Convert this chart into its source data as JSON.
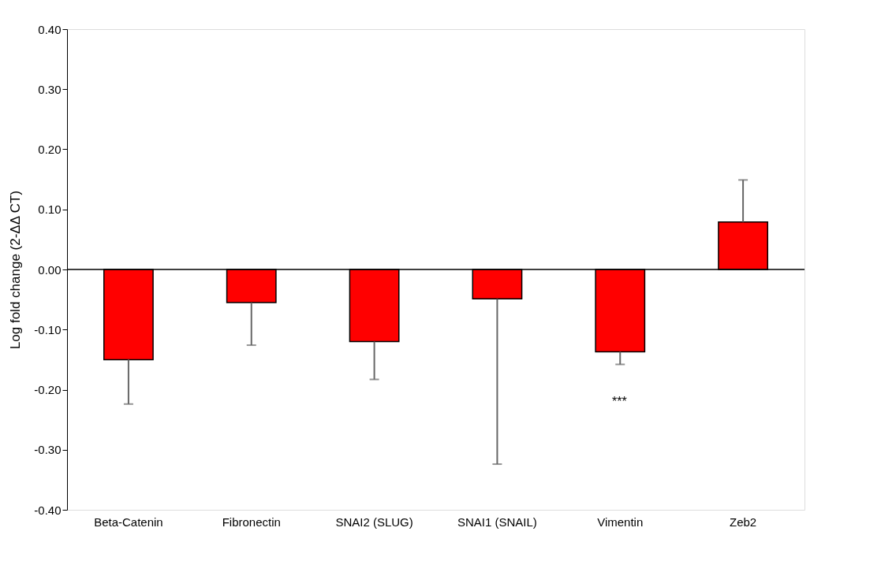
{
  "chart_data": {
    "type": "bar",
    "ylabel": "Log fold change (2-ΔΔ CT)",
    "categories": [
      "Beta-Catenin",
      "Fibronectin",
      "SNAI2 (SLUG)",
      "SNAI1 (SNAIL)",
      "Vimentin",
      "Zeb2"
    ],
    "values": [
      -0.15,
      -0.055,
      -0.12,
      -0.049,
      -0.137,
      0.079
    ],
    "errors": [
      [
        -0.224,
        -0.15
      ],
      [
        -0.126,
        -0.055
      ],
      [
        -0.183,
        -0.12
      ],
      [
        -0.324,
        -0.049
      ],
      [
        -0.158,
        -0.137
      ],
      [
        0.079,
        0.149
      ]
    ],
    "color": "#ff0000",
    "ylim": [
      -0.4,
      0.4
    ],
    "yticks": [
      {
        "value": -0.4,
        "label": "-0.40"
      },
      {
        "value": -0.3,
        "label": "-0.30"
      },
      {
        "value": -0.2,
        "label": "-0.20"
      },
      {
        "value": -0.1,
        "label": "-0.10"
      },
      {
        "value": 0,
        "label": "0.00"
      },
      {
        "value": 0.1,
        "label": "0.10"
      },
      {
        "value": 0.2,
        "label": "0.20"
      },
      {
        "value": 0.3,
        "label": "0.30"
      },
      {
        "value": 0.4,
        "label": "0.40"
      }
    ],
    "annotations": [
      "***"
    ]
  }
}
